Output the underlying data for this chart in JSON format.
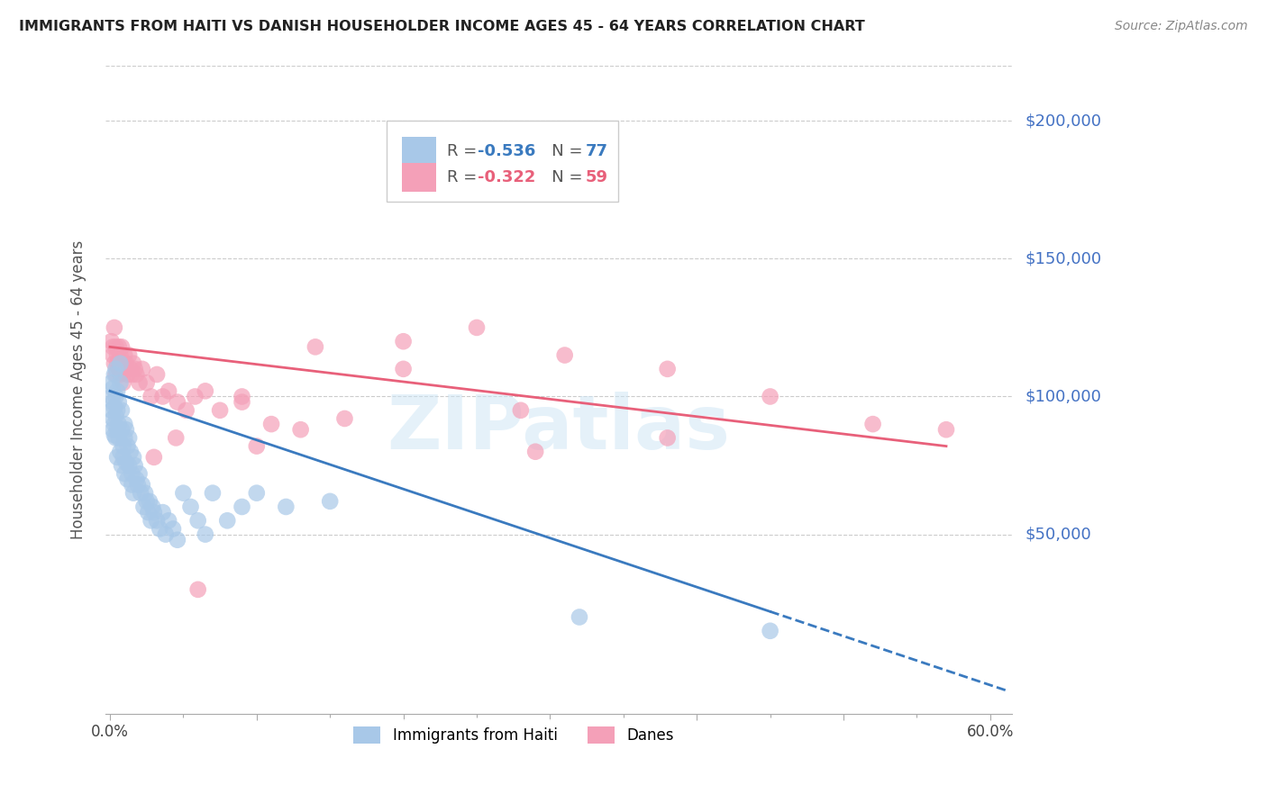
{
  "title": "IMMIGRANTS FROM HAITI VS DANISH HOUSEHOLDER INCOME AGES 45 - 64 YEARS CORRELATION CHART",
  "source": "Source: ZipAtlas.com",
  "ylabel": "Householder Income Ages 45 - 64 years",
  "ytick_labels": [
    "$50,000",
    "$100,000",
    "$150,000",
    "$200,000"
  ],
  "ytick_values": [
    50000,
    100000,
    150000,
    200000
  ],
  "ylim": [
    -15000,
    220000
  ],
  "xlim": [
    -0.003,
    0.615
  ],
  "color_haiti": "#a8c8e8",
  "color_danes": "#f4a0b8",
  "color_haiti_line": "#3a7abf",
  "color_danes_line": "#e8607a",
  "color_ytick": "#4472c4",
  "watermark": "ZIPatlas",
  "haiti_scatter_x": [
    0.001,
    0.001,
    0.001,
    0.002,
    0.002,
    0.002,
    0.002,
    0.003,
    0.003,
    0.003,
    0.003,
    0.004,
    0.004,
    0.004,
    0.004,
    0.005,
    0.005,
    0.005,
    0.005,
    0.006,
    0.006,
    0.006,
    0.007,
    0.007,
    0.007,
    0.008,
    0.008,
    0.008,
    0.009,
    0.009,
    0.01,
    0.01,
    0.01,
    0.011,
    0.011,
    0.012,
    0.012,
    0.013,
    0.013,
    0.014,
    0.015,
    0.015,
    0.016,
    0.016,
    0.017,
    0.018,
    0.019,
    0.02,
    0.021,
    0.022,
    0.023,
    0.024,
    0.025,
    0.026,
    0.027,
    0.028,
    0.029,
    0.03,
    0.032,
    0.034,
    0.036,
    0.038,
    0.04,
    0.043,
    0.046,
    0.05,
    0.055,
    0.06,
    0.065,
    0.07,
    0.08,
    0.09,
    0.1,
    0.12,
    0.15,
    0.32,
    0.45
  ],
  "haiti_scatter_y": [
    100000,
    95000,
    105000,
    98000,
    88000,
    92000,
    103000,
    86000,
    90000,
    96000,
    108000,
    100000,
    93000,
    85000,
    110000,
    95000,
    88000,
    102000,
    78000,
    90000,
    85000,
    98000,
    105000,
    112000,
    80000,
    95000,
    88000,
    75000,
    82000,
    78000,
    90000,
    85000,
    72000,
    88000,
    76000,
    82000,
    70000,
    85000,
    75000,
    80000,
    72000,
    68000,
    78000,
    65000,
    75000,
    70000,
    68000,
    72000,
    65000,
    68000,
    60000,
    65000,
    62000,
    58000,
    62000,
    55000,
    60000,
    58000,
    55000,
    52000,
    58000,
    50000,
    55000,
    52000,
    48000,
    65000,
    60000,
    55000,
    50000,
    65000,
    55000,
    60000,
    65000,
    60000,
    62000,
    20000,
    15000
  ],
  "danes_scatter_x": [
    0.001,
    0.002,
    0.002,
    0.003,
    0.003,
    0.004,
    0.004,
    0.005,
    0.005,
    0.006,
    0.006,
    0.007,
    0.007,
    0.008,
    0.008,
    0.009,
    0.01,
    0.01,
    0.011,
    0.012,
    0.013,
    0.014,
    0.015,
    0.016,
    0.017,
    0.018,
    0.02,
    0.022,
    0.025,
    0.028,
    0.032,
    0.036,
    0.04,
    0.046,
    0.052,
    0.058,
    0.065,
    0.075,
    0.09,
    0.11,
    0.13,
    0.16,
    0.2,
    0.25,
    0.31,
    0.38,
    0.45,
    0.52,
    0.57,
    0.2,
    0.28,
    0.14,
    0.09,
    0.045,
    0.38,
    0.29,
    0.1,
    0.06,
    0.03
  ],
  "danes_scatter_y": [
    120000,
    118000,
    115000,
    125000,
    112000,
    118000,
    108000,
    115000,
    112000,
    118000,
    110000,
    115000,
    108000,
    112000,
    118000,
    105000,
    110000,
    115000,
    112000,
    108000,
    115000,
    110000,
    108000,
    112000,
    110000,
    108000,
    105000,
    110000,
    105000,
    100000,
    108000,
    100000,
    102000,
    98000,
    95000,
    100000,
    102000,
    95000,
    98000,
    90000,
    88000,
    92000,
    120000,
    125000,
    115000,
    110000,
    100000,
    90000,
    88000,
    110000,
    95000,
    118000,
    100000,
    85000,
    85000,
    80000,
    82000,
    30000,
    78000
  ],
  "haiti_line_x0": 0.0,
  "haiti_line_y0": 102000,
  "haiti_line_x1": 0.45,
  "haiti_line_y1": 22000,
  "haiti_line_xdash": 0.45,
  "haiti_line_xend": 0.612,
  "danes_line_x0": 0.0,
  "danes_line_y0": 118000,
  "danes_line_x1": 0.57,
  "danes_line_y1": 82000
}
